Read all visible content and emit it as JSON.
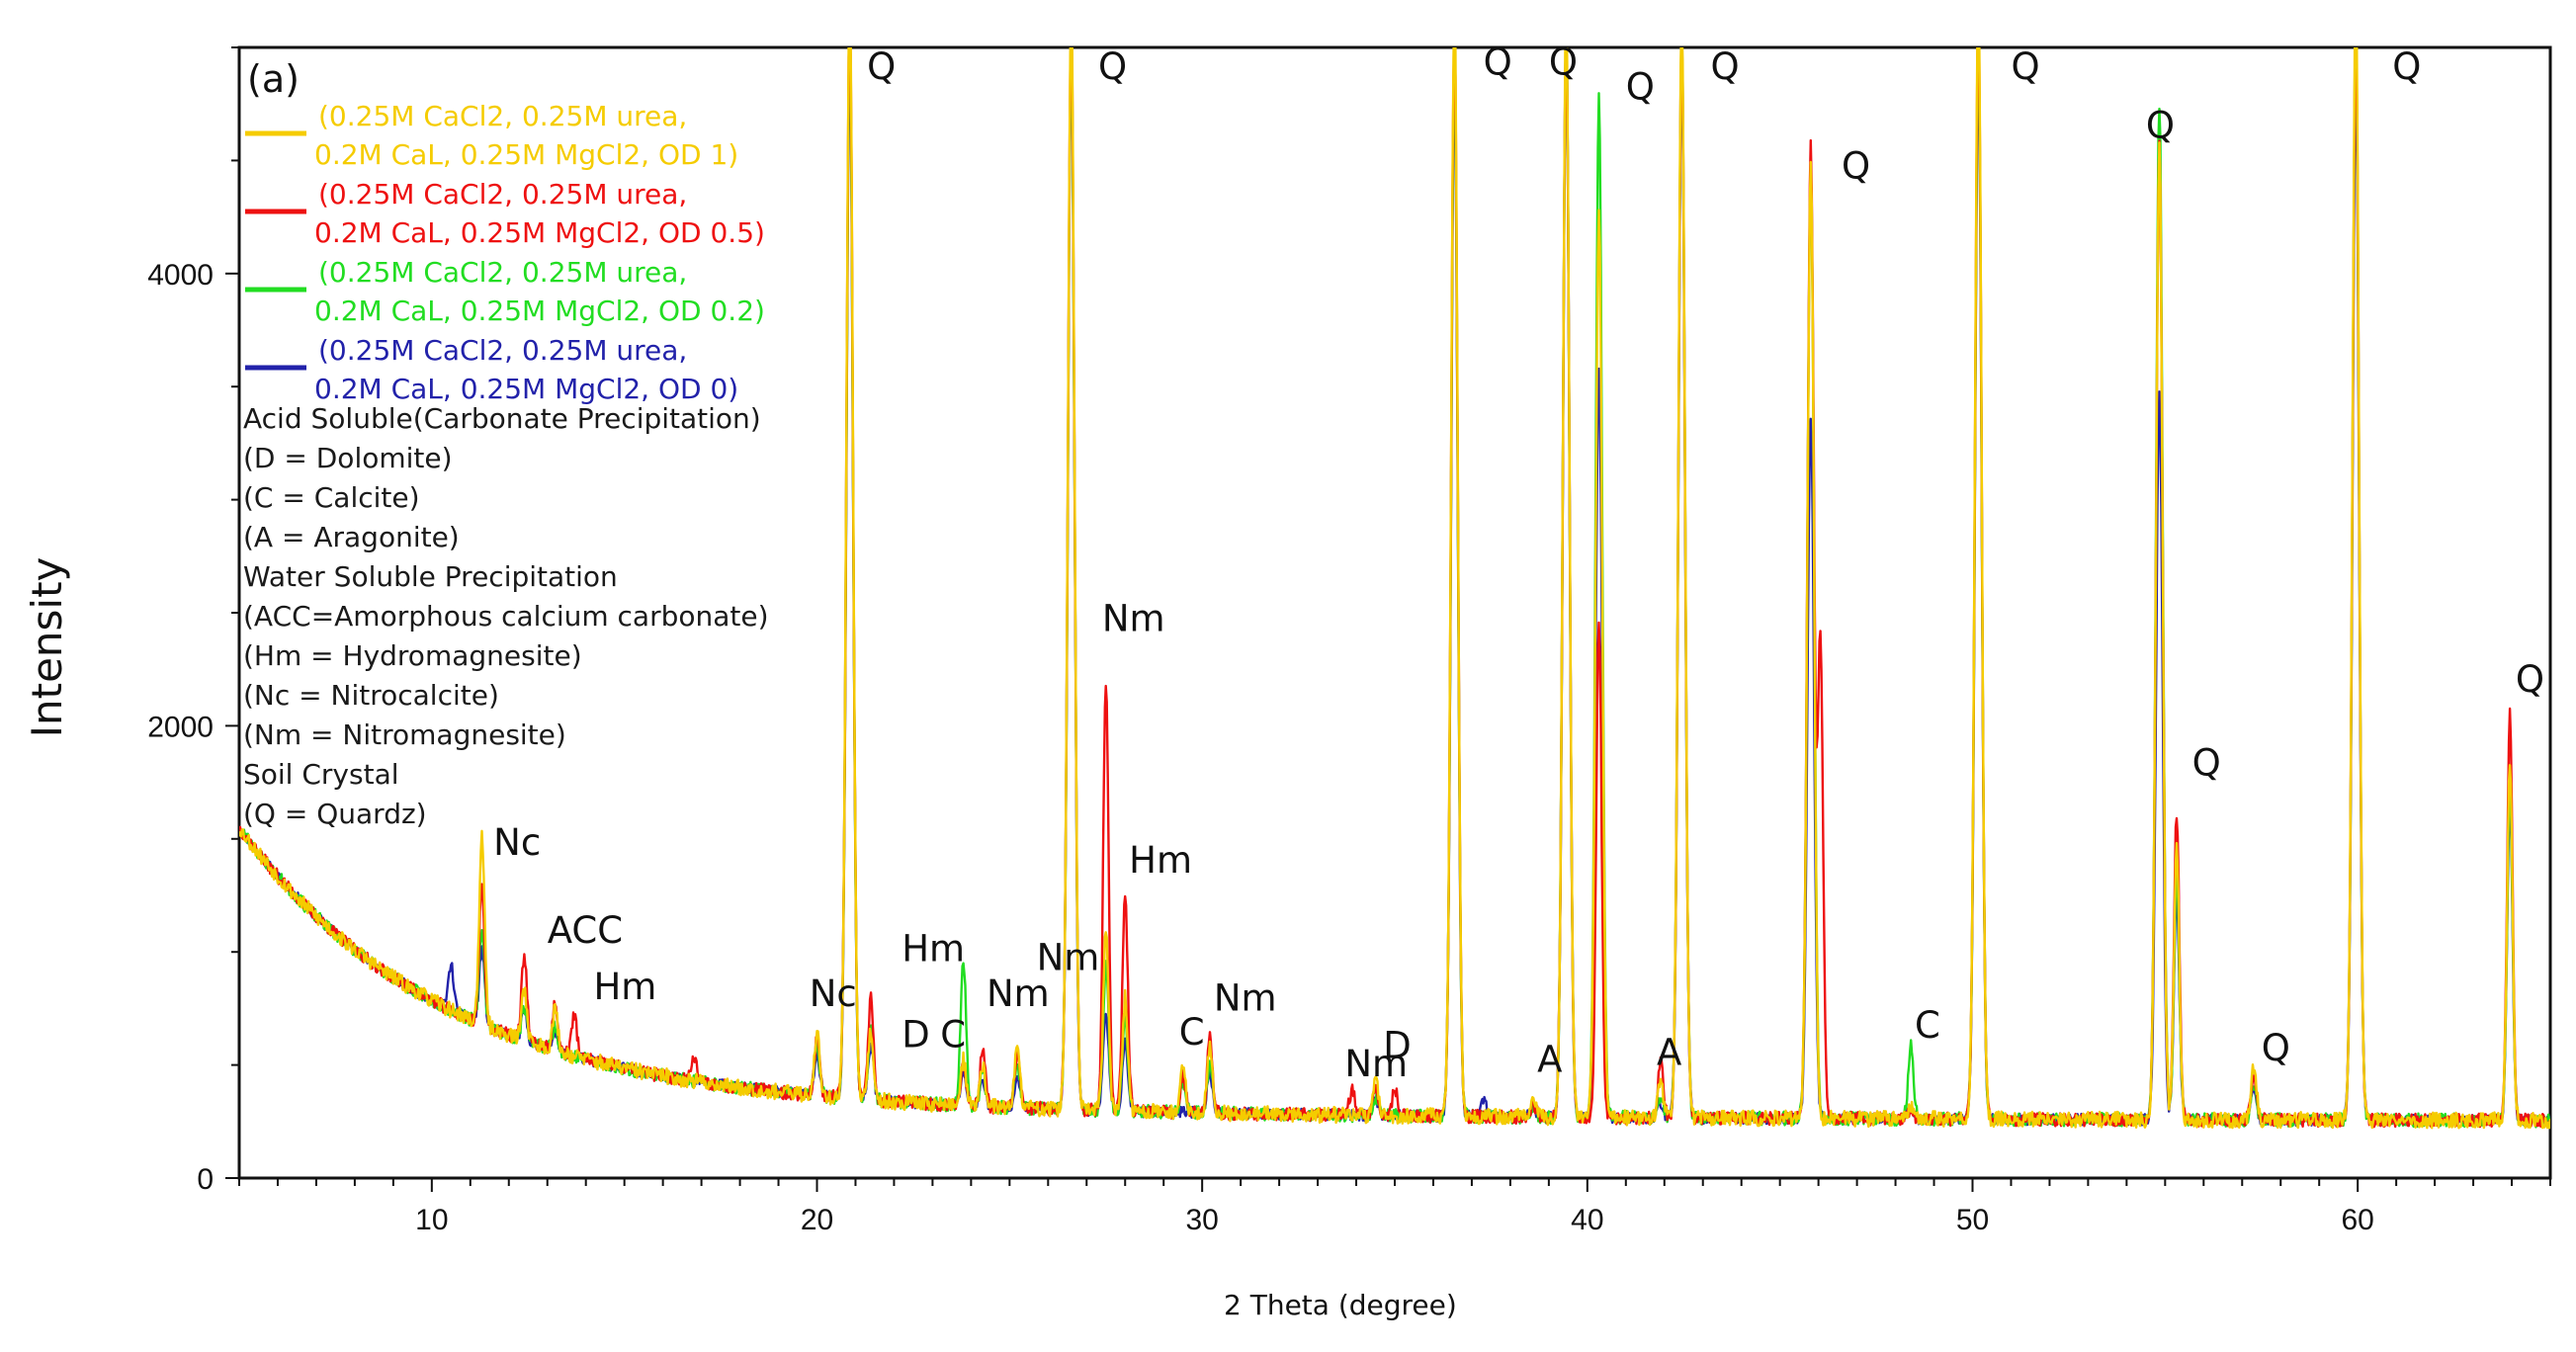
{
  "chart_data": {
    "type": "line",
    "panel_label": "(a)",
    "xlabel": "2 Theta (degree)",
    "ylabel": "Intensity",
    "xlim": [
      5,
      65
    ],
    "ylim": [
      0,
      5000
    ],
    "xticks": [
      10,
      20,
      30,
      40,
      50,
      60
    ],
    "yticks": [
      0,
      2000,
      4000
    ],
    "series": [
      {
        "name": "(0.25M CaCl2, 0.25M urea, 0.2M CaL, 0.25M MgCl2, OD 0)",
        "legend_lines": [
          "(0.25M CaCl2, 0.25M urea,",
          "0.2M CaL, 0.25M MgCl2, OD 0)"
        ],
        "color": "#2222aa",
        "seed": 11,
        "noise": 25,
        "peaks": [
          [
            11.3,
            330
          ],
          [
            10.5,
            200
          ],
          [
            12.4,
            130
          ],
          [
            13.2,
            90
          ],
          [
            20.0,
            180
          ],
          [
            20.85,
            4600
          ],
          [
            21.4,
            250
          ],
          [
            23.8,
            150
          ],
          [
            24.3,
            120
          ],
          [
            25.2,
            150
          ],
          [
            26.6,
            4700
          ],
          [
            27.5,
            450
          ],
          [
            28.0,
            300
          ],
          [
            30.2,
            180
          ],
          [
            34.5,
            80
          ],
          [
            36.55,
            4600
          ],
          [
            37.3,
            80
          ],
          [
            38.6,
            40
          ],
          [
            39.45,
            4800
          ],
          [
            40.3,
            3300
          ],
          [
            41.9,
            60
          ],
          [
            42.45,
            4700
          ],
          [
            45.8,
            3100
          ],
          [
            48.4,
            40
          ],
          [
            50.15,
            4700
          ],
          [
            54.85,
            3200
          ],
          [
            55.3,
            1000
          ],
          [
            57.3,
            130
          ],
          [
            59.95,
            4600
          ],
          [
            63.95,
            1400
          ]
        ]
      },
      {
        "name": "(0.25M CaCl2, 0.25M urea, 0.2M CaL, 0.25M MgCl2, OD 0.2)",
        "legend_lines": [
          "(0.25M CaCl2, 0.25M urea,",
          "0.2M CaL, 0.25M MgCl2, OD 0.2)"
        ],
        "color": "#22dd22",
        "seed": 23,
        "noise": 30,
        "peaks": [
          [
            11.3,
            420
          ],
          [
            12.4,
            150
          ],
          [
            13.2,
            110
          ],
          [
            20.0,
            220
          ],
          [
            20.85,
            4700
          ],
          [
            21.4,
            300
          ],
          [
            23.8,
            650
          ],
          [
            24.3,
            150
          ],
          [
            25.2,
            200
          ],
          [
            26.6,
            4700
          ],
          [
            27.5,
            650
          ],
          [
            28.0,
            400
          ],
          [
            29.5,
            130
          ],
          [
            30.2,
            220
          ],
          [
            34.5,
            80
          ],
          [
            36.55,
            4700
          ],
          [
            38.6,
            50
          ],
          [
            39.45,
            4800
          ],
          [
            40.3,
            4500
          ],
          [
            41.9,
            100
          ],
          [
            42.45,
            4800
          ],
          [
            45.8,
            4200
          ],
          [
            48.4,
            320
          ],
          [
            50.15,
            4800
          ],
          [
            54.85,
            4500
          ],
          [
            55.3,
            1100
          ],
          [
            57.3,
            160
          ],
          [
            59.95,
            4800
          ],
          [
            63.95,
            1500
          ]
        ]
      },
      {
        "name": "(0.25M CaCl2, 0.25M urea, 0.2M CaL, 0.25M MgCl2, OD 0.5)",
        "legend_lines": [
          "(0.25M CaCl2, 0.25M urea,",
          "0.2M CaL, 0.25M MgCl2, OD 0.5)"
        ],
        "color": "#ee1111",
        "seed": 37,
        "noise": 30,
        "peaks": [
          [
            11.3,
            600
          ],
          [
            12.4,
            380
          ],
          [
            13.2,
            200
          ],
          [
            13.7,
            180
          ],
          [
            16.8,
            120
          ],
          [
            20.0,
            250
          ],
          [
            20.85,
            4800
          ],
          [
            21.4,
            450
          ],
          [
            23.8,
            180
          ],
          [
            24.3,
            250
          ],
          [
            25.2,
            250
          ],
          [
            26.6,
            4800
          ],
          [
            27.5,
            1900
          ],
          [
            28.0,
            950
          ],
          [
            29.5,
            170
          ],
          [
            30.2,
            330
          ],
          [
            33.9,
            120
          ],
          [
            34.5,
            130
          ],
          [
            35.0,
            120
          ],
          [
            36.55,
            4800
          ],
          [
            38.6,
            50
          ],
          [
            39.45,
            4800
          ],
          [
            40.3,
            2200
          ],
          [
            41.9,
            250
          ],
          [
            42.45,
            4800
          ],
          [
            45.8,
            4300
          ],
          [
            46.05,
            2100
          ],
          [
            48.4,
            50
          ],
          [
            50.15,
            4900
          ],
          [
            54.85,
            4300
          ],
          [
            55.3,
            1350
          ],
          [
            57.3,
            200
          ],
          [
            59.95,
            4800
          ],
          [
            63.95,
            1800
          ]
        ]
      },
      {
        "name": "(0.25M CaCl2, 0.25M urea, 0.2M CaL, 0.25M MgCl2, OD 1)",
        "legend_lines": [
          "(0.25M CaCl2, 0.25M urea,",
          "0.2M CaL, 0.25M MgCl2, OD 1)"
        ],
        "color": "#f5cc00",
        "seed": 53,
        "noise": 35,
        "peaks": [
          [
            11.3,
            820
          ],
          [
            12.4,
            230
          ],
          [
            13.2,
            180
          ],
          [
            20.0,
            280
          ],
          [
            20.85,
            4900
          ],
          [
            21.4,
            300
          ],
          [
            23.8,
            200
          ],
          [
            24.3,
            180
          ],
          [
            25.2,
            270
          ],
          [
            26.6,
            4900
          ],
          [
            27.5,
            800
          ],
          [
            28.0,
            500
          ],
          [
            29.5,
            200
          ],
          [
            30.2,
            300
          ],
          [
            34.5,
            150
          ],
          [
            36.55,
            4900
          ],
          [
            38.6,
            60
          ],
          [
            39.45,
            4900
          ],
          [
            40.3,
            4000
          ],
          [
            41.9,
            150
          ],
          [
            42.45,
            4900
          ],
          [
            45.8,
            4200
          ],
          [
            48.4,
            60
          ],
          [
            50.15,
            5000
          ],
          [
            54.85,
            4300
          ],
          [
            55.3,
            1200
          ],
          [
            57.3,
            240
          ],
          [
            59.95,
            5000
          ],
          [
            63.95,
            1600
          ]
        ]
      }
    ],
    "legend_order": [
      3,
      2,
      1,
      0
    ],
    "key_lines": [
      "Acid Soluble(Carbonate Precipitation)",
      "(D = Dolomite)",
      "(C = Calcite)",
      "(A = Aragonite)",
      "Water Soluble Precipitation",
      "(ACC=Amorphous calcium carbonate)",
      "(Hm = Hydromagnesite)",
      "(Nc = Nitrocalcite)",
      "(Nm = Nitromagnesite)",
      "Soil Crystal",
      "(Q = Quardz)"
    ],
    "annotations": [
      {
        "text": "Q",
        "x": 21.3,
        "y": 4860
      },
      {
        "text": "Q",
        "x": 27.3,
        "y": 4860
      },
      {
        "text": "Q",
        "x": 37.3,
        "y": 4880
      },
      {
        "text": "Q",
        "x": 39.0,
        "y": 4880
      },
      {
        "text": "Q",
        "x": 41.0,
        "y": 4770
      },
      {
        "text": "Q",
        "x": 43.2,
        "y": 4860
      },
      {
        "text": "Q",
        "x": 46.6,
        "y": 4420
      },
      {
        "text": "Q",
        "x": 51.0,
        "y": 4860
      },
      {
        "text": "Q",
        "x": 54.5,
        "y": 4600
      },
      {
        "text": "Q",
        "x": 60.9,
        "y": 4860
      },
      {
        "text": "Q",
        "x": 64.1,
        "y": 2150
      },
      {
        "text": "Q",
        "x": 55.7,
        "y": 1780
      },
      {
        "text": "Q",
        "x": 57.5,
        "y": 520
      },
      {
        "text": "Nm",
        "x": 27.4,
        "y": 2420
      },
      {
        "text": "Hm",
        "x": 28.1,
        "y": 1350
      },
      {
        "text": "Nc",
        "x": 11.6,
        "y": 1430
      },
      {
        "text": "ACC",
        "x": 13.0,
        "y": 1040
      },
      {
        "text": "Hm",
        "x": 14.2,
        "y": 790
      },
      {
        "text": "Nc",
        "x": 19.8,
        "y": 760
      },
      {
        "text": "Hm",
        "x": 22.2,
        "y": 960
      },
      {
        "text": "D",
        "x": 22.2,
        "y": 580
      },
      {
        "text": "C",
        "x": 23.2,
        "y": 580
      },
      {
        "text": "Nm",
        "x": 24.4,
        "y": 760
      },
      {
        "text": "Nm",
        "x": 25.7,
        "y": 920
      },
      {
        "text": "C",
        "x": 29.4,
        "y": 590
      },
      {
        "text": "Nm",
        "x": 30.3,
        "y": 740
      },
      {
        "text": "Nm",
        "x": 33.7,
        "y": 450
      },
      {
        "text": "D",
        "x": 34.7,
        "y": 530
      },
      {
        "text": "A",
        "x": 38.7,
        "y": 470
      },
      {
        "text": "A",
        "x": 41.8,
        "y": 500
      },
      {
        "text": "C",
        "x": 48.5,
        "y": 620
      }
    ]
  }
}
